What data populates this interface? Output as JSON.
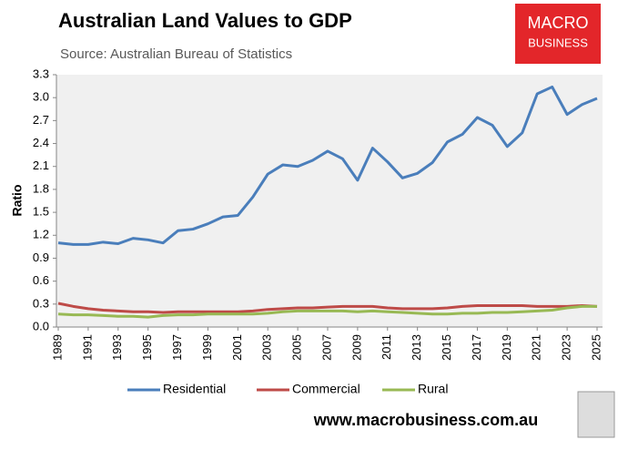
{
  "chart_data": {
    "type": "line",
    "title": "Australian Land Values to GDP",
    "subtitle": "Source: Australian Bureau of Statistics",
    "y_label": "Ratio",
    "x": [
      1989,
      1990,
      1991,
      1992,
      1993,
      1994,
      1995,
      1996,
      1997,
      1998,
      1999,
      2000,
      2001,
      2002,
      2003,
      2004,
      2005,
      2006,
      2007,
      2008,
      2009,
      2010,
      2011,
      2012,
      2013,
      2014,
      2015,
      2016,
      2017,
      2018,
      2019,
      2020,
      2021,
      2022,
      2023,
      2024,
      2025
    ],
    "series": [
      {
        "name": "Residential",
        "color": "#4a7ebb",
        "values": [
          1.1,
          1.08,
          1.08,
          1.11,
          1.09,
          1.16,
          1.14,
          1.1,
          1.26,
          1.28,
          1.35,
          1.44,
          1.46,
          1.7,
          2.0,
          2.12,
          2.1,
          2.18,
          2.3,
          2.2,
          1.92,
          2.34,
          2.16,
          1.95,
          2.01,
          2.15,
          2.42,
          2.52,
          2.74,
          2.64,
          2.36,
          2.54,
          3.05,
          3.14,
          2.78,
          2.91,
          2.99
        ]
      },
      {
        "name": "Commercial",
        "color": "#be4b48",
        "values": [
          0.31,
          0.27,
          0.24,
          0.22,
          0.21,
          0.2,
          0.2,
          0.19,
          0.2,
          0.2,
          0.2,
          0.2,
          0.2,
          0.21,
          0.23,
          0.24,
          0.25,
          0.25,
          0.26,
          0.27,
          0.27,
          0.27,
          0.25,
          0.24,
          0.24,
          0.24,
          0.25,
          0.27,
          0.28,
          0.28,
          0.28,
          0.28,
          0.27,
          0.27,
          0.27,
          0.28,
          0.27
        ]
      },
      {
        "name": "Rural",
        "color": "#98b954",
        "values": [
          0.17,
          0.16,
          0.16,
          0.15,
          0.14,
          0.14,
          0.13,
          0.15,
          0.16,
          0.16,
          0.17,
          0.17,
          0.17,
          0.17,
          0.18,
          0.2,
          0.21,
          0.21,
          0.21,
          0.21,
          0.2,
          0.21,
          0.2,
          0.19,
          0.18,
          0.17,
          0.17,
          0.18,
          0.18,
          0.19,
          0.19,
          0.2,
          0.21,
          0.22,
          0.25,
          0.27,
          0.27
        ]
      }
    ],
    "xlim": [
      1989,
      2025
    ],
    "xticks": [
      1989,
      1991,
      1993,
      1995,
      1997,
      1999,
      2001,
      2003,
      2005,
      2007,
      2009,
      2011,
      2013,
      2015,
      2017,
      2019,
      2021,
      2023,
      2025
    ],
    "ylim": [
      0,
      3.3
    ],
    "yticks": [
      {
        "value": 0,
        "label": "0.0"
      },
      0.3,
      0.6,
      0.9,
      1.2,
      1.5,
      1.8,
      2.1,
      2.4,
      2.7,
      {
        "value": 3,
        "label": "3.0"
      },
      3.3
    ],
    "grid": false,
    "legend": "bottom"
  },
  "branding": {
    "logo_top": "MACRO",
    "logo_bottom": "BUSINESS",
    "url": "www.macrobusiness.com.au"
  }
}
